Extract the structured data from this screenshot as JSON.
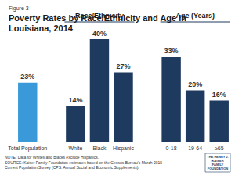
{
  "chart_data": {
    "type": "bar",
    "figure_label": "Figure 3",
    "title": "Poverty Rates by Race/Ethnicity and Age in Louisiana, 2014",
    "categories": [
      "Total Population",
      null,
      "White",
      "Black",
      "Hispanic",
      null,
      "0-18",
      "19-64",
      "≥65"
    ],
    "values": [
      23,
      null,
      14,
      40,
      27,
      null,
      33,
      20,
      16
    ],
    "value_labels": [
      "23%",
      null,
      "14%",
      "40%",
      "27%",
      null,
      "33%",
      "20%",
      "16%"
    ],
    "colors": [
      "#3a9ad9",
      null,
      "#1f3a5f",
      "#1f3a5f",
      "#1f3a5f",
      null,
      "#1f3a5f",
      "#1f3a5f",
      "#1f3a5f"
    ],
    "ylim": [
      0,
      40
    ],
    "data_labels": true,
    "tick_labels": "x",
    "grid": false,
    "annotations": [
      {
        "text": "Race/Ethnicity",
        "categories": [
          "White",
          "Black",
          "Hispanic"
        ]
      },
      {
        "text": "Age (Years)",
        "categories": [
          "0-18",
          "19-64",
          "≥65"
        ]
      }
    ],
    "note": "NOTE: Data for Whites and Blacks exclude Hispanics.",
    "source": "SOURCE: Kaiser Family Foundation estimates based on the Census Bureau's March 2015 Current Population Survey (CPS: Annual Social and Economic Supplements).",
    "logo": "THE HENRY J.\nKAISER\nFAMILY\nFOUNDATION"
  }
}
